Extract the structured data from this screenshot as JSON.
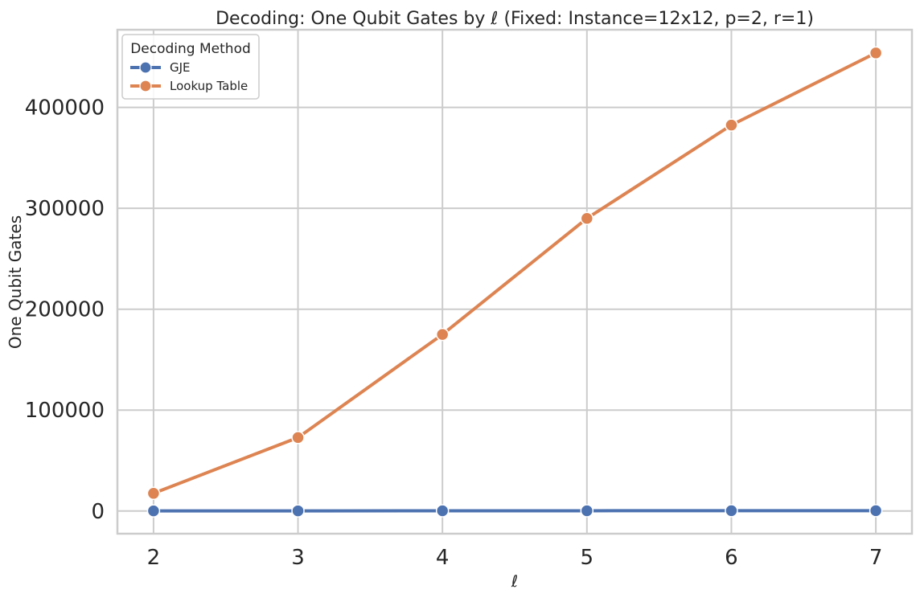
{
  "chart_data": {
    "type": "line",
    "title": "Decoding: One Qubit Gates by ℓ (Fixed: Instance=12x12, p=2, r=1)",
    "xlabel": "ℓ",
    "ylabel": "One Qubit Gates",
    "x": [
      2,
      3,
      4,
      5,
      6,
      7
    ],
    "xticks": [
      "2",
      "3",
      "4",
      "5",
      "6",
      "7"
    ],
    "xlim": [
      1.75,
      7.25
    ],
    "ylim": [
      -22500,
      477000
    ],
    "yticks": [
      0,
      100000,
      200000,
      300000,
      400000
    ],
    "ytick_labels": [
      "0",
      "100000",
      "200000",
      "300000",
      "400000"
    ],
    "grid": true,
    "legend": {
      "title": "Decoding Method",
      "placement": "top-left"
    },
    "series": [
      {
        "name": "GJE",
        "color": "#4c72b0",
        "marker": "circle",
        "values": [
          100,
          150,
          200,
          250,
          300,
          350
        ]
      },
      {
        "name": "Lookup Table",
        "color": "#dd8452",
        "marker": "circle",
        "values": [
          17500,
          72800,
          175000,
          290000,
          382500,
          454000
        ]
      }
    ]
  }
}
